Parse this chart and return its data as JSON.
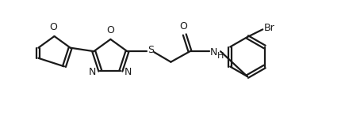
{
  "background_color": "#ffffff",
  "line_color": "#1a1a1a",
  "line_width": 1.6,
  "font_size": 9.0,
  "fig_width": 4.6,
  "fig_height": 1.46,
  "dpi": 100,
  "xlim": [
    0,
    9.2
  ],
  "ylim": [
    0,
    3.0
  ]
}
